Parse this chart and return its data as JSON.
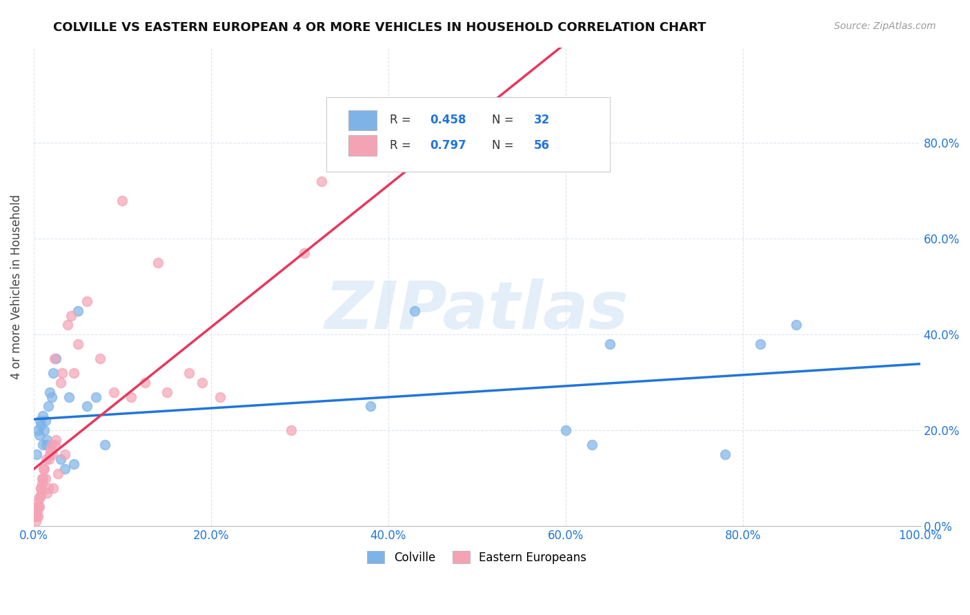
{
  "title": "COLVILLE VS EASTERN EUROPEAN 4 OR MORE VEHICLES IN HOUSEHOLD CORRELATION CHART",
  "source": "Source: ZipAtlas.com",
  "ylabel": "4 or more Vehicles in Household",
  "xlabel": "",
  "xlim": [
    0,
    100.0
  ],
  "ylim": [
    0,
    100.0
  ],
  "xticks": [
    0,
    20,
    40,
    60,
    80,
    100
  ],
  "yticks": [
    0,
    20,
    40,
    60,
    80
  ],
  "xticklabels": [
    "0.0%",
    "20.0%",
    "40.0%",
    "60.0%",
    "80.0%",
    "100.0%"
  ],
  "yticklabels_right": [
    "0.0%",
    "20.0%",
    "40.0%",
    "60.0%",
    "80.0%"
  ],
  "colville_color": "#7eb3e8",
  "eastern_color": "#f4a3b5",
  "colville_line_color": "#2175d9",
  "eastern_line_color": "#e8365d",
  "colville_R": 0.458,
  "colville_N": 32,
  "eastern_R": 0.797,
  "eastern_N": 56,
  "watermark": "ZIPatlas",
  "legend_label_colville": "Colville",
  "legend_label_eastern": "Eastern Europeans",
  "colville_x": [
    0.3,
    0.5,
    0.6,
    0.7,
    0.8,
    1.0,
    1.0,
    1.2,
    1.3,
    1.4,
    1.5,
    1.6,
    1.8,
    2.0,
    2.2,
    2.5,
    3.0,
    3.5,
    4.0,
    4.5,
    5.0,
    6.0,
    7.0,
    8.0,
    38,
    43,
    60,
    63,
    65,
    78,
    82,
    86
  ],
  "colville_y": [
    15,
    20,
    19,
    22,
    21,
    17,
    23,
    20,
    22,
    17,
    18,
    25,
    28,
    27,
    32,
    35,
    14,
    12,
    27,
    13,
    45,
    25,
    27,
    17,
    25,
    45,
    20,
    17,
    38,
    15,
    38,
    42
  ],
  "eastern_x": [
    0.1,
    0.15,
    0.2,
    0.25,
    0.3,
    0.35,
    0.4,
    0.45,
    0.5,
    0.55,
    0.6,
    0.65,
    0.7,
    0.75,
    0.8,
    0.85,
    0.9,
    0.95,
    1.0,
    1.1,
    1.2,
    1.3,
    1.4,
    1.5,
    1.6,
    1.7,
    1.8,
    1.9,
    2.0,
    2.1,
    2.2,
    2.3,
    2.4,
    2.5,
    2.7,
    3.0,
    3.2,
    3.5,
    3.8,
    4.2,
    4.5,
    5.0,
    6.0,
    7.5,
    9.0,
    10.0,
    11.0,
    12.5,
    14.0,
    15.0,
    17.5,
    19.0,
    21.0,
    29.0,
    30.5,
    32.5
  ],
  "eastern_y": [
    2,
    3,
    1,
    3,
    2,
    4,
    3,
    2,
    5,
    4,
    4,
    6,
    6,
    8,
    8,
    7,
    9,
    10,
    10,
    12,
    12,
    10,
    14,
    7,
    8,
    14,
    15,
    16,
    17,
    15,
    8,
    35,
    17,
    18,
    11,
    30,
    32,
    15,
    42,
    44,
    32,
    38,
    47,
    35,
    28,
    68,
    27,
    30,
    55,
    28,
    32,
    30,
    27,
    20,
    57,
    72
  ]
}
